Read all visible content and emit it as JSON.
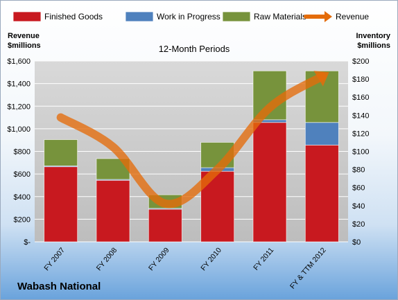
{
  "company_name": "Wabash National",
  "left_axis_title": [
    "Revenue",
    "$millions"
  ],
  "right_axis_title": [
    "Inventory",
    "$millions"
  ],
  "colors": {
    "finished_goods": "#c8191f",
    "work_in_progress": "#4f81bd",
    "raw_materials": "#77933c",
    "revenue": "#e46c0a",
    "plot_background": "#c8c8c8"
  },
  "chart_data": {
    "type": "bar",
    "subtype": "stacked bar with line overlay",
    "title": "12-Month Periods",
    "categories": [
      "FY 2007",
      "FY 2008",
      "FY 2009",
      "FY 2010",
      "FY 2011",
      "FY & TTM 2012"
    ],
    "inventory_series": [
      {
        "name": "Finished Goods",
        "values": [
          83,
          68,
          36,
          78,
          132,
          107
        ]
      },
      {
        "name": "Work in Progress",
        "values": [
          1,
          1,
          1,
          4,
          3,
          25
        ]
      },
      {
        "name": "Raw Materials",
        "values": [
          29,
          23,
          15,
          28,
          54,
          57
        ]
      }
    ],
    "revenue_series": {
      "name": "Revenue",
      "values": [
        1100,
        840,
        338,
        640,
        1187,
        1463
      ]
    },
    "left_axis": {
      "min": 0,
      "max": 1600,
      "step": 200,
      "tick_labels": [
        "$-",
        "$200",
        "$400",
        "$600",
        "$800",
        "$1,000",
        "$1,200",
        "$1,400",
        "$1,600"
      ]
    },
    "right_axis": {
      "min": 0,
      "max": 200,
      "step": 20,
      "tick_labels": [
        "$0",
        "$20",
        "$40",
        "$60",
        "$80",
        "$100",
        "$120",
        "$140",
        "$160",
        "$180",
        "$200"
      ]
    },
    "legend": [
      "Finished Goods",
      "Work in Progress",
      "Raw Materials",
      "Revenue"
    ],
    "legend_position": "top",
    "grid": true
  }
}
